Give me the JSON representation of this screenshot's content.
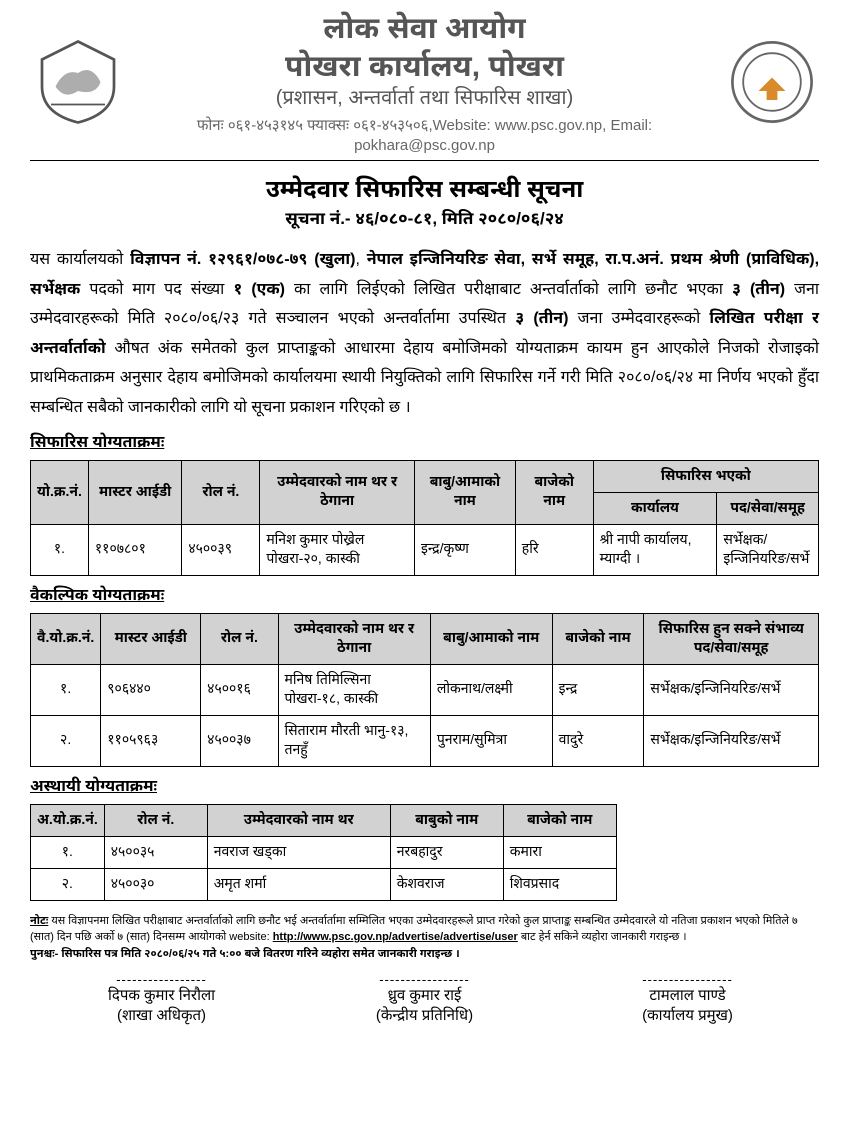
{
  "header": {
    "line1a": "लोक सेवा आयोग",
    "line1b": "पोखरा कार्यालय, पोखरा",
    "line2": "(प्रशासन, अन्तर्वार्ता तथा सिफारिस शाखा)",
    "contact": "फोनः ०६१-४५३१४५  फ्याक्सः ०६१-४५३५०६,Website: www.psc.gov.np, Email: pokhara@psc.gov.np",
    "emblem_left_color": "#555555",
    "emblem_right_ring": "#666666",
    "emblem_right_accent": "#d98b2b"
  },
  "notice": {
    "title": "उम्मेदवार सिफारिस सम्बन्धी सूचना",
    "subtitle": "सूचना नं.- ४६/०८०-८१, मिति २०८०/०६/२४"
  },
  "paragraph_html": "यस कार्यालयको <b>विज्ञापन नं. १२९६१/०७८-७९ (खुला)</b>, <b>नेपाल इन्जिनियरिङ सेवा, सर्भे समूह, रा.प.अनं. प्रथम श्रेणी (प्राविधिक), सर्भेक्षक</b> पदको माग पद संख्या <b>१ (एक)</b> का लागि लिईएको लिखित परीक्षाबाट अन्तर्वार्ताको लागि छनौट भएका <b>३ (तीन)</b> जना उम्मेदवारहरूको मिति २०८०/०६/२३ गते सञ्चालन भएको अन्तर्वार्तामा उपस्थित <b>३ (तीन)</b> जना उम्मेदवारहरूको <b>लिखित परीक्षा र अन्तर्वार्ताको </b>औषत अंक समेतको कुल प्राप्ताङ्कको आधारमा देहाय बमोजिमको योग्यताक्रम कायम हुन आएकोले निजको रोजाइको प्राथमिकताक्रम अनुसार देहाय बमोजिमको कार्यालयमा स्थायी नियुक्तिको लागि सिफारिस गर्ने गरी मिति २०८०/०६/२४ मा निर्णय भएको हुँदा सम्बन्धित सबैको जानकारीको लागि यो सूचना प्रकाशन गरिएको छ ।",
  "table1": {
    "heading": "सिफारिस योग्यताक्रमः",
    "col_widths": [
      "6%",
      "12%",
      "10%",
      "20%",
      "13%",
      "10%",
      "16%",
      "13%"
    ],
    "headers_top": {
      "c1": "यो.क्र.नं.",
      "c2": "मास्टर आईडी",
      "c3": "रोल नं.",
      "c4": "उम्मेदवारको नाम थर र ठेगाना",
      "c5": "बाबु/आमाको नाम",
      "c6": "बाजेको नाम",
      "c7": "सिफारिस भएको"
    },
    "headers_sub": {
      "s1": "कार्यालय",
      "s2": "पद/सेवा/समूह"
    },
    "row": {
      "sn": "१.",
      "master": "११०७८०१",
      "roll": "४५००३९",
      "name": "मनिश कुमार पोख्रेल पोखरा-२०, कास्की",
      "parents": "इन्द्र/कृष्ण",
      "grand": "हरि",
      "office": "श्री नापी कार्यालय, म्याग्दी ।",
      "post": "सर्भेक्षक/इन्जिनियरिङ/सर्भे"
    }
  },
  "table2": {
    "heading": "वैकल्पिक योग्यताक्रमः",
    "col_widths": [
      "6%",
      "13%",
      "10%",
      "20%",
      "16%",
      "12%",
      "23%"
    ],
    "headers": {
      "c1": "वै.यो.क्र.नं.",
      "c2": "मास्टर आईडी",
      "c3": "रोल नं.",
      "c4": "उम्मेदवारको नाम थर र ठेगाना",
      "c5": "बाबु/आमाको नाम",
      "c6": "बाजेको नाम",
      "c7": "सिफारिस हुन सक्ने संभाव्य पद/सेवा/समूह"
    },
    "rows": [
      {
        "sn": "१.",
        "master": "९०६४४०",
        "roll": "४५००१६",
        "name": "मनिष तिमिल्सिना पोखरा-१८, कास्की",
        "parents": "लोकनाथ/लक्ष्मी",
        "grand": "इन्द्र",
        "post": "सर्भेक्षक/इन्जिनियरिङ/सर्भे"
      },
      {
        "sn": "२.",
        "master": "११०५९६३",
        "roll": "४५००३७",
        "name": "सिताराम मौरती भानु-१३, तनहुँ",
        "parents": "पुनराम/सुमित्रा",
        "grand": "वादुरे",
        "post": "सर्भेक्षक/इन्जिनियरिङ/सर्भे"
      }
    ]
  },
  "table3": {
    "heading": "अस्थायी योग्यताक्रमः",
    "headers": {
      "c1": "अ.यो.क्र.नं.",
      "c2": "रोल नं.",
      "c3": "उम्मेदवारको नाम थर",
      "c4": "बाबुको नाम",
      "c5": "बाजेको नाम"
    },
    "rows": [
      {
        "sn": "१.",
        "roll": "४५००३५",
        "name": "नवराज खड्का",
        "father": "नरबहादुर",
        "grand": "कमारा"
      },
      {
        "sn": "२.",
        "roll": "४५००३०",
        "name": "अमृत शर्मा",
        "father": "केशवराज",
        "grand": "शिवप्रसाद"
      }
    ]
  },
  "note": {
    "label": "नोटः",
    "text1": " यस विज्ञापनमा लिखित परीक्षाबाट अन्तर्वार्ताको लागि छनौट भई अन्तर्वार्तामा सम्मिलित भएका उम्मेदवारहरूले प्राप्त गरेको कुल प्राप्ताङ्क सम्बन्धित उम्मेदवारले यो नतिजा प्रकाशन भएको मितिले ७ (सात) दिन पछि अर्को ७ (सात) दिनसम्म आयोगको website: ",
    "link": "http://www.psc.gov.np/advertise/advertise/user",
    "text2": " बाट हेर्न सकिने व्यहोरा जानकारी गराइन्छ ।",
    "punashcha": "पुनश्चः- सिफारिस पत्र मिति २०८०/०६/२५ गते ५:०० बजे वितरण गरिने व्यहोरा समेत जानकारी गराइन्छ ।"
  },
  "signatures": {
    "dash": "-----------------",
    "s1_name": "दिपक कुमार निरौला",
    "s1_role": "(शाखा अधिकृत)",
    "s2_name": "ध्रुव कुमार राई",
    "s2_role": "(केन्द्रीय प्रतिनिधि)",
    "s3_name": "टामलाल पाण्डे",
    "s3_role": "(कार्यालय प्रमुख)"
  }
}
